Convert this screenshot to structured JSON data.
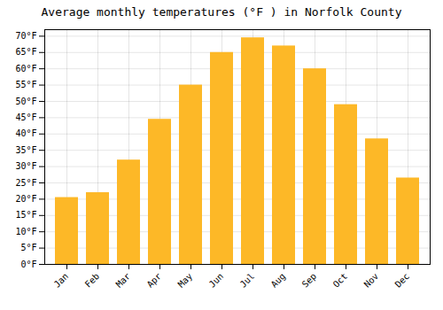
{
  "chart_data": {
    "type": "bar",
    "title": "Average monthly temperatures (°F ) in Norfolk County",
    "categories": [
      "Jan",
      "Feb",
      "Mar",
      "Apr",
      "May",
      "Jun",
      "Jul",
      "Aug",
      "Sep",
      "Oct",
      "Nov",
      "Dec"
    ],
    "values": [
      20.5,
      22.0,
      32.0,
      44.5,
      55.0,
      65.0,
      69.5,
      67.0,
      60.0,
      49.0,
      38.5,
      26.5
    ],
    "color": "#FDB827",
    "ylim": [
      0,
      72
    ],
    "yticks": [
      {
        "value": 0,
        "label": "0°F"
      },
      {
        "value": 5,
        "label": "5°F"
      },
      {
        "value": 10,
        "label": "10°F"
      },
      {
        "value": 15,
        "label": "15°F"
      },
      {
        "value": 20,
        "label": "20°F"
      },
      {
        "value": 25,
        "label": "25°F"
      },
      {
        "value": 30,
        "label": "30°F"
      },
      {
        "value": 35,
        "label": "35°F"
      },
      {
        "value": 40,
        "label": "40°F"
      },
      {
        "value": 45,
        "label": "45°F"
      },
      {
        "value": 50,
        "label": "50°F"
      },
      {
        "value": 55,
        "label": "55°F"
      },
      {
        "value": 60,
        "label": "60°F"
      },
      {
        "value": 65,
        "label": "65°F"
      },
      {
        "value": 70,
        "label": "70°F"
      }
    ],
    "grid": true
  }
}
